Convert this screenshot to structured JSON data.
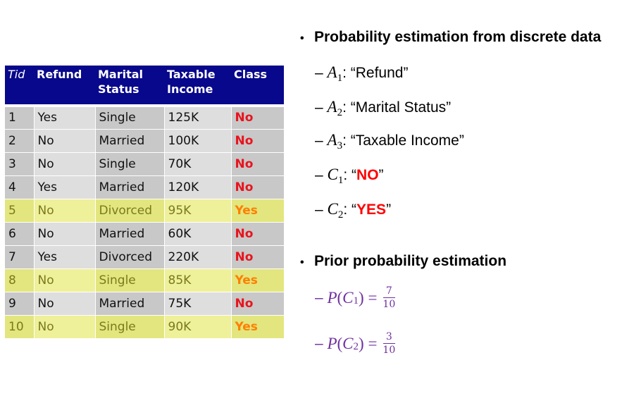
{
  "table": {
    "headers": {
      "tid": "Tid",
      "refund": "Refund",
      "marital_1": "Marital",
      "marital_2": "Status",
      "income_1": "Taxable",
      "income_2": "Income",
      "class": "Class"
    },
    "rows": [
      {
        "tid": "1",
        "refund": "Yes",
        "marital": "Single",
        "income": "125K",
        "class": "No"
      },
      {
        "tid": "2",
        "refund": "No",
        "marital": "Married",
        "income": "100K",
        "class": "No"
      },
      {
        "tid": "3",
        "refund": "No",
        "marital": "Single",
        "income": "70K",
        "class": "No"
      },
      {
        "tid": "4",
        "refund": "Yes",
        "marital": "Married",
        "income": "120K",
        "class": "No"
      },
      {
        "tid": "5",
        "refund": "No",
        "marital": "Divorced",
        "income": "95K",
        "class": "Yes"
      },
      {
        "tid": "6",
        "refund": "No",
        "marital": "Married",
        "income": "60K",
        "class": "No"
      },
      {
        "tid": "7",
        "refund": "Yes",
        "marital": "Divorced",
        "income": "220K",
        "class": "No"
      },
      {
        "tid": "8",
        "refund": "No",
        "marital": "Single",
        "income": "85K",
        "class": "Yes"
      },
      {
        "tid": "9",
        "refund": "No",
        "marital": "Married",
        "income": "75K",
        "class": "No"
      },
      {
        "tid": "10",
        "refund": "No",
        "marital": "Single",
        "income": "90K",
        "class": "Yes"
      }
    ]
  },
  "bullets": {
    "dot": "•",
    "dash": "–",
    "section1_title": "Probability estimation from discrete data",
    "a1": {
      "var": "A",
      "sub": "1",
      "text": ": “Refund”"
    },
    "a2": {
      "var": "A",
      "sub": "2",
      "text": ": “Marital Status”"
    },
    "a3": {
      "var": "A",
      "sub": "3",
      "text": ": “Taxable Income”"
    },
    "c1": {
      "var": "C",
      "sub": "1",
      "pre": ": “",
      "val": "NO",
      "post": "”"
    },
    "c2": {
      "var": "C",
      "sub": "2",
      "pre": ": “",
      "val": "YES",
      "post": "”"
    },
    "section2_title": "Prior probability estimation",
    "p1": {
      "p": "P",
      "open": "(",
      "var": "C",
      "sub": "1",
      "close": ")",
      "eq": "=",
      "num": "7",
      "den": "10"
    },
    "p2": {
      "p": "P",
      "open": "(",
      "var": "C",
      "sub": "2",
      "close": ")",
      "eq": "=",
      "num": "3",
      "den": "10"
    }
  },
  "colors": {
    "header_bg": "#08088c",
    "class_no": "#e8141e",
    "class_yes": "#ff7f00",
    "highlight_row": "#eff09a",
    "c_value": "#ff0000",
    "formula": "#7030a0"
  }
}
